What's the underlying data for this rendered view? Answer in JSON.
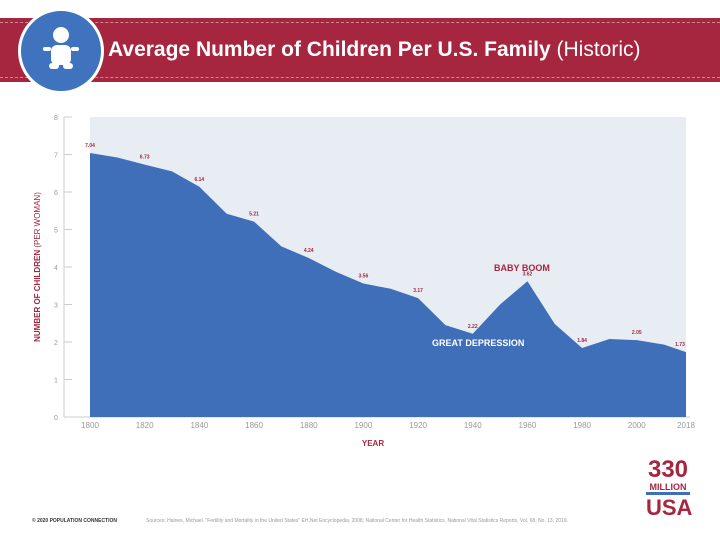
{
  "header": {
    "title": "Average Number of Children Per U.S. Family",
    "title_suffix": "(Historic)",
    "icon": "baby-icon"
  },
  "colors": {
    "band": "#a6263f",
    "area": "#3f6fb8",
    "label": "#a6263f"
  },
  "chart_data": {
    "type": "area",
    "xlabel": "YEAR",
    "ylabel": "NUMBER OF CHILDREN",
    "ylabel_suffix": "(PER WOMAN)",
    "xlim": [
      1800,
      2018
    ],
    "ylim": [
      0,
      8
    ],
    "xticks": [
      1800,
      1820,
      1840,
      1860,
      1880,
      1900,
      1920,
      1940,
      1960,
      1980,
      2000,
      2018
    ],
    "yticks": [
      0,
      1,
      2,
      3,
      4,
      5,
      6,
      7,
      8
    ],
    "x": [
      1800,
      1810,
      1820,
      1830,
      1840,
      1850,
      1860,
      1870,
      1880,
      1890,
      1900,
      1910,
      1920,
      1930,
      1940,
      1950,
      1960,
      1970,
      1980,
      1990,
      2000,
      2010,
      2018
    ],
    "values": [
      7.04,
      6.92,
      6.73,
      6.55,
      6.14,
      5.42,
      5.21,
      4.55,
      4.24,
      3.87,
      3.56,
      3.42,
      3.17,
      2.45,
      2.22,
      3.0,
      3.62,
      2.48,
      1.84,
      2.08,
      2.05,
      1.93,
      1.73
    ],
    "data_labels": [
      {
        "x": 1800,
        "y": 7.04,
        "text": "7.04"
      },
      {
        "x": 1820,
        "y": 6.73,
        "text": "6.73"
      },
      {
        "x": 1840,
        "y": 6.14,
        "text": "6.14"
      },
      {
        "x": 1860,
        "y": 5.21,
        "text": "5.21"
      },
      {
        "x": 1880,
        "y": 4.24,
        "text": "4.24"
      },
      {
        "x": 1900,
        "y": 3.56,
        "text": "3.56"
      },
      {
        "x": 1920,
        "y": 3.17,
        "text": "3.17"
      },
      {
        "x": 1940,
        "y": 2.22,
        "text": "2.22"
      },
      {
        "x": 1960,
        "y": 3.62,
        "text": "3.62"
      },
      {
        "x": 1980,
        "y": 1.84,
        "text": "1.84"
      },
      {
        "x": 2000,
        "y": 2.05,
        "text": "2.05"
      },
      {
        "x": 2018,
        "y": 1.73,
        "text": "1.73"
      }
    ],
    "annotations": [
      {
        "text": "BABY BOOM",
        "x": 1958,
        "y": 3.9
      },
      {
        "text": "GREAT DEPRESSION",
        "x": 1942,
        "y": 1.9
      }
    ]
  },
  "footer": {
    "copyright": "© 2020 POPULATION CONNECTION",
    "sources": "Sources: Haines, Michael. \"Fertility and Mortality in the United States\" EH.Net Encyclopedia, 2008; National Center for Health Statistics, National Vital Statistics Reports, Vol. 68, No. 13, 2019."
  },
  "logo": {
    "number": "330",
    "word": "MILLION",
    "country": "USA"
  }
}
